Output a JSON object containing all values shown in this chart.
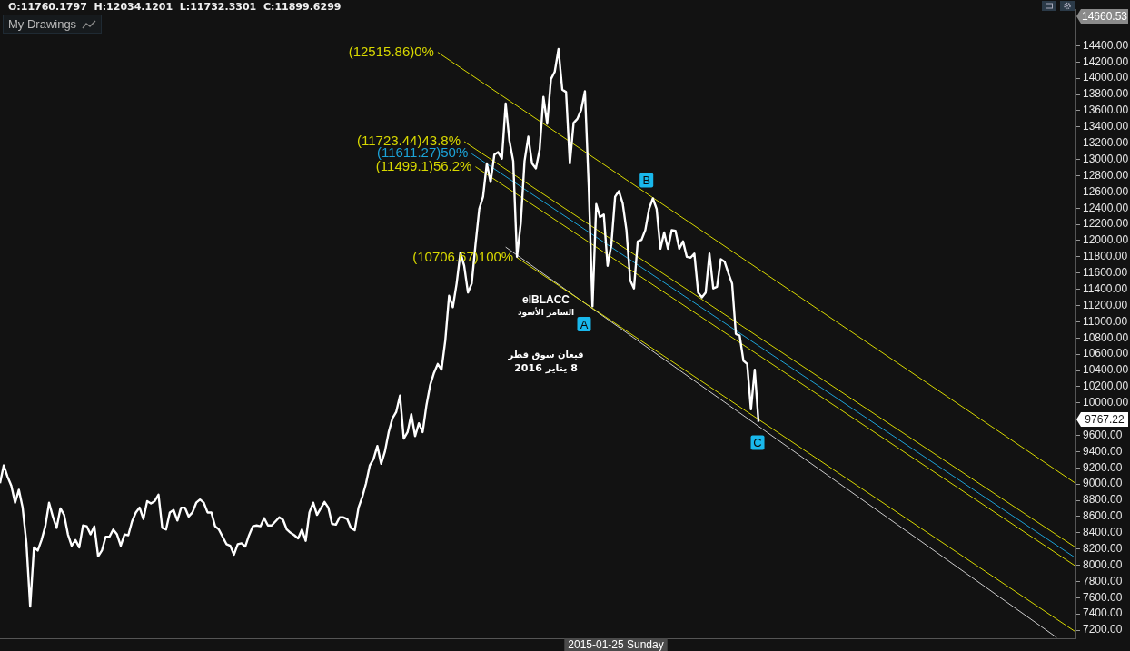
{
  "chart_data": {
    "type": "line",
    "tick_labels": "y",
    "ylim": [
      7100,
      14850
    ],
    "yticks": [
      {
        "value": 7200,
        "label": "7200.00"
      },
      {
        "value": 7400,
        "label": "7400.00"
      },
      {
        "value": 7600,
        "label": "7600.00"
      },
      {
        "value": 7800,
        "label": "7800.00"
      },
      {
        "value": 8000,
        "label": "8000.00"
      },
      {
        "value": 8200,
        "label": "8200.00"
      },
      {
        "value": 8400,
        "label": "8400.00"
      },
      {
        "value": 8600,
        "label": "8600.00"
      },
      {
        "value": 8800,
        "label": "8800.00"
      },
      {
        "value": 9000,
        "label": "9000.00"
      },
      {
        "value": 9200,
        "label": "9200.00"
      },
      {
        "value": 9400,
        "label": "9400.00"
      },
      {
        "value": 9600,
        "label": "9600.00"
      },
      {
        "value": 10000,
        "label": "10000.00"
      },
      {
        "value": 10200,
        "label": "10200.00"
      },
      {
        "value": 10400,
        "label": "10400.00"
      },
      {
        "value": 10600,
        "label": "10600.00"
      },
      {
        "value": 10800,
        "label": "10800.00"
      },
      {
        "value": 11000,
        "label": "11000.00"
      },
      {
        "value": 11200,
        "label": "11200.00"
      },
      {
        "value": 11400,
        "label": "11400.00"
      },
      {
        "value": 11600,
        "label": "11600.00"
      },
      {
        "value": 11800,
        "label": "11800.00"
      },
      {
        "value": 12000,
        "label": "12000.00"
      },
      {
        "value": 12200,
        "label": "12200.00"
      },
      {
        "value": 12400,
        "label": "12400.00"
      },
      {
        "value": 12600,
        "label": "12600.00"
      },
      {
        "value": 12800,
        "label": "12800.00"
      },
      {
        "value": 13000,
        "label": "13000.00"
      },
      {
        "value": 13200,
        "label": "13200.00"
      },
      {
        "value": 13400,
        "label": "13400.00"
      },
      {
        "value": 13600,
        "label": "13600.00"
      },
      {
        "value": 13800,
        "label": "13800.00"
      },
      {
        "value": 14000,
        "label": "14000.00"
      },
      {
        "value": 14200,
        "label": "14200.00"
      },
      {
        "value": 14400,
        "label": "14400.00"
      }
    ],
    "categories": [
      null,
      null,
      null,
      null,
      null,
      null,
      null,
      null,
      null,
      null,
      null,
      null,
      null,
      null,
      null,
      null,
      null,
      null,
      null,
      null,
      null,
      null,
      null,
      null,
      null,
      null,
      null,
      null,
      null,
      null,
      null,
      null,
      null,
      null,
      null,
      null,
      null,
      null,
      null,
      null,
      null,
      null,
      null,
      null,
      null,
      null,
      null,
      null,
      null,
      null,
      null,
      null,
      null,
      null,
      null,
      null,
      null,
      null,
      null,
      null,
      null,
      null,
      null,
      null,
      null,
      null,
      null,
      null,
      null,
      null,
      null,
      null,
      null,
      null,
      null,
      null,
      null,
      null,
      null,
      null,
      null,
      null,
      null,
      null,
      null,
      null,
      null,
      null,
      null,
      null,
      null,
      null,
      null,
      null,
      null,
      null,
      null,
      null,
      null,
      null,
      null,
      null,
      null,
      null,
      null,
      null,
      null,
      null,
      null,
      null,
      null,
      null,
      null,
      null,
      null,
      null,
      null,
      null,
      null,
      null,
      null,
      null,
      null,
      null,
      null,
      null,
      null,
      null,
      null,
      null,
      null,
      null,
      null,
      null,
      null,
      null,
      null,
      null,
      null,
      null,
      null,
      null,
      null,
      null,
      null,
      null,
      null,
      null,
      null,
      null,
      null,
      null,
      null,
      null,
      null,
      null,
      null,
      null,
      null,
      null,
      null,
      null,
      null,
      null,
      null,
      null,
      null,
      null,
      null,
      null,
      null,
      null,
      null,
      null,
      null,
      null,
      null,
      null,
      null,
      null,
      null,
      null,
      null,
      null,
      null,
      null,
      null,
      null,
      null,
      null,
      null,
      null,
      null,
      null,
      null,
      null,
      null,
      null,
      null,
      null,
      null,
      null,
      null,
      null,
      null,
      null,
      null,
      null,
      null,
      null,
      null,
      null,
      null,
      null,
      null,
      null,
      null,
      null,
      null,
      null,
      null,
      null,
      null,
      null,
      null,
      null,
      null,
      null,
      null,
      null,
      null,
      null,
      null,
      null,
      null,
      null,
      null,
      null,
      null,
      null,
      null,
      null,
      null,
      null,
      null,
      null,
      null,
      null,
      null,
      null,
      null,
      null,
      null,
      null,
      null,
      null,
      null,
      null,
      null,
      null,
      null,
      null,
      null,
      null,
      null,
      null,
      null,
      null,
      null,
      null,
      null,
      null,
      null,
      null,
      null,
      null,
      null,
      null,
      null,
      null,
      null,
      null,
      null,
      null,
      null,
      null
    ],
    "series": [
      {
        "color": "#ffffff",
        "values": [
          9010,
          9230,
          9090,
          8980,
          8770,
          8930,
          8710,
          8270,
          7490,
          8220,
          8180,
          8310,
          8480,
          8770,
          8600,
          8460,
          8700,
          8620,
          8380,
          8240,
          8310,
          8220,
          8490,
          8480,
          8380,
          8480,
          8110,
          8180,
          8350,
          8350,
          8440,
          8380,
          8240,
          8380,
          8370,
          8540,
          8650,
          8710,
          8570,
          8790,
          8760,
          8790,
          8870,
          8460,
          8440,
          8650,
          8680,
          8550,
          8710,
          8710,
          8600,
          8650,
          8770,
          8810,
          8770,
          8650,
          8650,
          8480,
          8440,
          8350,
          8260,
          8240,
          8130,
          8260,
          8270,
          8230,
          8370,
          8480,
          8490,
          8480,
          8580,
          8490,
          8490,
          8540,
          8590,
          8560,
          8440,
          8400,
          8370,
          8330,
          8440,
          8300,
          8650,
          8770,
          8620,
          8700,
          8780,
          8710,
          8510,
          8500,
          8590,
          8590,
          8570,
          8460,
          8430,
          8710,
          8840,
          9010,
          9230,
          9310,
          9470,
          9250,
          9400,
          9640,
          9810,
          9890,
          10090,
          9560,
          9640,
          9860,
          9590,
          9750,
          9640,
          9970,
          10220,
          10370,
          10480,
          10410,
          10770,
          11320,
          11180,
          11470,
          11850,
          11690,
          11360,
          11470,
          11950,
          12390,
          12540,
          12950,
          12720,
          13060,
          13090,
          13010,
          13690,
          13230,
          12980,
          11800,
          12210,
          12980,
          13280,
          12950,
          12890,
          13120,
          13770,
          13440,
          13990,
          14080,
          14360,
          13860,
          13830,
          12950,
          13450,
          13500,
          13610,
          13840,
          12680,
          11190,
          12450,
          12290,
          12320,
          11690,
          11950,
          12540,
          12610,
          12460,
          12130,
          11510,
          11410,
          11990,
          12010,
          12130,
          12390,
          12520,
          12390,
          11900,
          12100,
          11900,
          12130,
          12120,
          11900,
          11990,
          11800,
          11790,
          11840,
          11360,
          11300,
          11360,
          11840,
          11410,
          11430,
          11770,
          11740,
          11600,
          11470,
          10850,
          10830,
          10520,
          10480,
          9920,
          10410,
          9767.22,
          null,
          null,
          null,
          null,
          null,
          null,
          null,
          null,
          null,
          null,
          null,
          null,
          null,
          null,
          null,
          null,
          null,
          null,
          null,
          null,
          null,
          null,
          null,
          null,
          null,
          null,
          null,
          null,
          null,
          null,
          null,
          null,
          null,
          null,
          null,
          null,
          null,
          null,
          null,
          null,
          null,
          null,
          null,
          null,
          null,
          null,
          null,
          null,
          null,
          null,
          null,
          null,
          null,
          null,
          null,
          null,
          null,
          null,
          null,
          null,
          null,
          null,
          null,
          null,
          null,
          null,
          null,
          null,
          null,
          null,
          null,
          null,
          null,
          null,
          null,
          null,
          null,
          null,
          null,
          null,
          null,
          null,
          null,
          null
        ]
      },
      {
        "name": "(12515.86)0%",
        "color": "#d8d800",
        "values": [
          null,
          null,
          null,
          null,
          null,
          null,
          null,
          null,
          null,
          null,
          null,
          null,
          null,
          null,
          null,
          null,
          null,
          null,
          null,
          null,
          null,
          null,
          null,
          null,
          null,
          null,
          null,
          null,
          null,
          null,
          null,
          null,
          null,
          null,
          null,
          null,
          null,
          null,
          null,
          null,
          null,
          null,
          null,
          null,
          null,
          null,
          null,
          null,
          null,
          null,
          null,
          null,
          null,
          null,
          null,
          null,
          null,
          null,
          null,
          null,
          null,
          null,
          null,
          null,
          null,
          null,
          null,
          null,
          null,
          null,
          null,
          null,
          null,
          null,
          null,
          null,
          null,
          null,
          null,
          null,
          null,
          null,
          null,
          null,
          null,
          null,
          null,
          null,
          null,
          null,
          null,
          null,
          null,
          null,
          null,
          null,
          null,
          null,
          null,
          null,
          null,
          null,
          null,
          null,
          null,
          null,
          null,
          null,
          null,
          null,
          null,
          null,
          null,
          null,
          null,
          null,
          14320,
          null,
          null,
          null,
          null,
          null,
          null,
          null,
          null,
          null,
          null,
          null,
          null,
          null,
          null,
          null,
          null,
          null,
          null,
          null,
          null,
          null,
          null,
          null,
          null,
          null,
          null,
          null,
          null,
          null,
          null,
          null,
          null,
          null,
          null,
          null,
          null,
          null,
          null,
          null,
          null,
          null,
          null,
          null,
          null,
          null,
          null,
          null,
          null,
          null,
          null,
          null,
          null,
          null,
          null,
          null,
          null,
          null,
          null,
          null,
          null,
          null,
          null,
          null,
          null,
          null,
          null,
          null,
          null,
          null,
          null,
          null,
          null,
          null,
          null,
          null,
          null,
          null,
          null,
          null,
          null,
          null,
          null,
          null,
          null,
          null,
          null,
          null,
          null,
          null,
          null,
          null,
          null,
          null,
          null,
          null,
          null,
          null,
          null,
          null,
          null,
          null,
          null,
          null,
          null,
          null,
          null,
          null,
          null,
          null,
          null,
          null,
          null,
          null,
          null,
          null,
          null,
          null,
          null,
          null,
          null,
          null,
          null,
          null,
          null,
          null,
          null,
          null,
          null,
          null,
          null,
          null,
          null,
          null,
          null,
          null,
          null,
          null,
          null,
          null,
          null,
          null,
          null,
          null,
          null,
          null,
          null,
          null,
          null,
          null,
          null,
          null,
          null,
          null,
          null,
          null,
          null,
          null,
          null,
          null,
          null,
          null,
          null,
          null,
          null,
          null,
          null,
          null,
          null,
          9010
        ]
      },
      {
        "name": "(11723.44)43.8%",
        "color": "#d8d800",
        "values": [
          null,
          null,
          null,
          null,
          null,
          null,
          null,
          null,
          null,
          null,
          null,
          null,
          null,
          null,
          null,
          null,
          null,
          null,
          null,
          null,
          null,
          null,
          null,
          null,
          null,
          null,
          null,
          null,
          null,
          null,
          null,
          null,
          null,
          null,
          null,
          null,
          null,
          null,
          null,
          null,
          null,
          null,
          null,
          null,
          null,
          null,
          null,
          null,
          null,
          null,
          null,
          null,
          null,
          null,
          null,
          null,
          null,
          null,
          null,
          null,
          null,
          null,
          null,
          null,
          null,
          null,
          null,
          null,
          null,
          null,
          null,
          null,
          null,
          null,
          null,
          null,
          null,
          null,
          null,
          null,
          null,
          null,
          null,
          null,
          null,
          null,
          null,
          null,
          null,
          null,
          null,
          null,
          null,
          null,
          null,
          null,
          null,
          null,
          null,
          null,
          null,
          null,
          null,
          null,
          null,
          null,
          null,
          null,
          null,
          null,
          null,
          null,
          null,
          null,
          null,
          null,
          null,
          null,
          null,
          null,
          null,
          null,
          null,
          13220,
          null,
          null,
          null,
          null,
          null,
          null,
          null,
          null,
          null,
          null,
          null,
          null,
          null,
          null,
          null,
          null,
          null,
          null,
          null,
          null,
          null,
          null,
          null,
          null,
          null,
          null,
          null,
          null,
          null,
          null,
          null,
          null,
          null,
          null,
          null,
          null,
          null,
          null,
          null,
          null,
          null,
          null,
          null,
          null,
          null,
          null,
          null,
          null,
          null,
          null,
          null,
          null,
          null,
          null,
          null,
          null,
          null,
          null,
          null,
          null,
          null,
          null,
          null,
          null,
          null,
          null,
          null,
          null,
          null,
          null,
          null,
          null,
          null,
          null,
          null,
          null,
          null,
          null,
          null,
          null,
          null,
          null,
          null,
          null,
          null,
          null,
          null,
          null,
          null,
          null,
          null,
          null,
          null,
          null,
          null,
          null,
          null,
          null,
          null,
          null,
          null,
          null,
          null,
          null,
          null,
          null,
          null,
          null,
          null,
          null,
          null,
          null,
          null,
          null,
          null,
          null,
          null,
          null,
          null,
          null,
          null,
          null,
          null,
          null,
          null,
          null,
          null,
          null,
          null,
          null,
          null,
          null,
          null,
          null,
          null,
          null,
          null,
          null,
          null,
          null,
          null,
          null,
          null,
          null,
          null,
          null,
          null,
          null,
          null,
          null,
          null,
          null,
          null,
          null,
          null,
          null,
          null,
          null,
          null,
          null,
          null,
          8220
        ]
      },
      {
        "name": "(11611.27)50%",
        "color": "#1ca3d8",
        "values": [
          null,
          null,
          null,
          null,
          null,
          null,
          null,
          null,
          null,
          null,
          null,
          null,
          null,
          null,
          null,
          null,
          null,
          null,
          null,
          null,
          null,
          null,
          null,
          null,
          null,
          null,
          null,
          null,
          null,
          null,
          null,
          null,
          null,
          null,
          null,
          null,
          null,
          null,
          null,
          null,
          null,
          null,
          null,
          null,
          null,
          null,
          null,
          null,
          null,
          null,
          null,
          null,
          null,
          null,
          null,
          null,
          null,
          null,
          null,
          null,
          null,
          null,
          null,
          null,
          null,
          null,
          null,
          null,
          null,
          null,
          null,
          null,
          null,
          null,
          null,
          null,
          null,
          null,
          null,
          null,
          null,
          null,
          null,
          null,
          null,
          null,
          null,
          null,
          null,
          null,
          null,
          null,
          null,
          null,
          null,
          null,
          null,
          null,
          null,
          null,
          null,
          null,
          null,
          null,
          null,
          null,
          null,
          null,
          null,
          null,
          null,
          null,
          null,
          null,
          null,
          null,
          null,
          null,
          null,
          null,
          null,
          null,
          null,
          null,
          null,
          13070,
          null,
          null,
          null,
          null,
          null,
          null,
          null,
          null,
          null,
          null,
          null,
          null,
          null,
          null,
          null,
          null,
          null,
          null,
          null,
          null,
          null,
          null,
          null,
          null,
          null,
          null,
          null,
          null,
          null,
          null,
          null,
          null,
          null,
          null,
          null,
          null,
          null,
          null,
          null,
          null,
          null,
          null,
          null,
          null,
          null,
          null,
          null,
          null,
          null,
          null,
          null,
          null,
          null,
          null,
          null,
          null,
          null,
          null,
          null,
          null,
          null,
          null,
          null,
          null,
          null,
          null,
          null,
          null,
          null,
          null,
          null,
          null,
          null,
          null,
          null,
          null,
          null,
          null,
          null,
          null,
          null,
          null,
          null,
          null,
          null,
          null,
          null,
          null,
          null,
          null,
          null,
          null,
          null,
          null,
          null,
          null,
          null,
          null,
          null,
          null,
          null,
          null,
          null,
          null,
          null,
          null,
          null,
          null,
          null,
          null,
          null,
          null,
          null,
          null,
          null,
          null,
          null,
          null,
          null,
          null,
          null,
          null,
          null,
          null,
          null,
          null,
          null,
          null,
          null,
          null,
          null,
          null,
          null,
          null,
          null,
          null,
          null,
          null,
          null,
          null,
          null,
          null,
          null,
          null,
          null,
          null,
          null,
          null,
          null,
          null,
          null,
          null,
          null,
          null,
          null,
          null,
          null,
          null,
          null,
          8090
        ]
      },
      {
        "name": "(11499.1)56.2%",
        "color": "#d8d800",
        "values": [
          null,
          null,
          null,
          null,
          null,
          null,
          null,
          null,
          null,
          null,
          null,
          null,
          null,
          null,
          null,
          null,
          null,
          null,
          null,
          null,
          null,
          null,
          null,
          null,
          null,
          null,
          null,
          null,
          null,
          null,
          null,
          null,
          null,
          null,
          null,
          null,
          null,
          null,
          null,
          null,
          null,
          null,
          null,
          null,
          null,
          null,
          null,
          null,
          null,
          null,
          null,
          null,
          null,
          null,
          null,
          null,
          null,
          null,
          null,
          null,
          null,
          null,
          null,
          null,
          null,
          null,
          null,
          null,
          null,
          null,
          null,
          null,
          null,
          null,
          null,
          null,
          null,
          null,
          null,
          null,
          null,
          null,
          null,
          null,
          null,
          null,
          null,
          null,
          null,
          null,
          null,
          null,
          null,
          null,
          null,
          null,
          null,
          null,
          null,
          null,
          null,
          null,
          null,
          null,
          null,
          null,
          null,
          null,
          null,
          null,
          null,
          null,
          null,
          null,
          null,
          null,
          null,
          null,
          null,
          null,
          null,
          null,
          null,
          null,
          null,
          null,
          12910,
          null,
          null,
          null,
          null,
          null,
          null,
          null,
          null,
          null,
          null,
          null,
          null,
          null,
          null,
          null,
          null,
          null,
          null,
          null,
          null,
          null,
          null,
          null,
          null,
          null,
          null,
          null,
          null,
          null,
          null,
          null,
          null,
          null,
          null,
          null,
          null,
          null,
          null,
          null,
          null,
          null,
          null,
          null,
          null,
          null,
          null,
          null,
          null,
          null,
          null,
          null,
          null,
          null,
          null,
          null,
          null,
          null,
          null,
          null,
          null,
          null,
          null,
          null,
          null,
          null,
          null,
          null,
          null,
          null,
          null,
          null,
          null,
          null,
          null,
          null,
          null,
          null,
          null,
          null,
          null,
          null,
          null,
          null,
          null,
          null,
          null,
          null,
          null,
          null,
          null,
          null,
          null,
          null,
          null,
          null,
          null,
          null,
          null,
          null,
          null,
          null,
          null,
          null,
          null,
          null,
          null,
          null,
          null,
          null,
          null,
          null,
          null,
          null,
          null,
          null,
          null,
          null,
          null,
          null,
          null,
          null,
          null,
          null,
          null,
          null,
          null,
          null,
          null,
          null,
          null,
          null,
          null,
          null,
          null,
          null,
          null,
          null,
          null,
          null,
          null,
          null,
          null,
          null,
          null,
          null,
          null,
          null,
          null,
          null,
          null,
          null,
          null,
          null,
          null,
          null,
          null,
          null,
          null,
          7990
        ]
      },
      {
        "name": "(10706.67)100%",
        "color": "#d8d800",
        "values": [
          null,
          null,
          null,
          null,
          null,
          null,
          null,
          null,
          null,
          null,
          null,
          null,
          null,
          null,
          null,
          null,
          null,
          null,
          null,
          null,
          null,
          null,
          null,
          null,
          null,
          null,
          null,
          null,
          null,
          null,
          null,
          null,
          null,
          null,
          null,
          null,
          null,
          null,
          null,
          null,
          null,
          null,
          null,
          null,
          null,
          null,
          null,
          null,
          null,
          null,
          null,
          null,
          null,
          null,
          null,
          null,
          null,
          null,
          null,
          null,
          null,
          null,
          null,
          null,
          null,
          null,
          null,
          null,
          null,
          null,
          null,
          null,
          null,
          null,
          null,
          null,
          null,
          null,
          null,
          null,
          null,
          null,
          null,
          null,
          null,
          null,
          null,
          null,
          null,
          null,
          null,
          null,
          null,
          null,
          null,
          null,
          null,
          null,
          null,
          null,
          null,
          null,
          null,
          null,
          null,
          null,
          null,
          null,
          null,
          null,
          null,
          null,
          null,
          null,
          null,
          null,
          null,
          null,
          null,
          null,
          null,
          null,
          null,
          null,
          null,
          null,
          null,
          null,
          null,
          null,
          null,
          null,
          null,
          null,
          null,
          null,
          null,
          11790,
          null,
          null,
          null,
          null,
          null,
          null,
          null,
          null,
          null,
          null,
          null,
          null,
          null,
          null,
          null,
          null,
          null,
          null,
          null,
          null,
          null,
          null,
          null,
          null,
          null,
          null,
          null,
          null,
          null,
          null,
          null,
          null,
          null,
          null,
          null,
          null,
          null,
          null,
          null,
          null,
          null,
          null,
          null,
          null,
          null,
          null,
          null,
          null,
          null,
          null,
          null,
          null,
          null,
          null,
          null,
          null,
          null,
          null,
          null,
          null,
          null,
          null,
          null,
          null,
          null,
          null,
          null,
          null,
          null,
          null,
          null,
          null,
          null,
          null,
          null,
          null,
          null,
          null,
          null,
          null,
          null,
          null,
          null,
          null,
          null,
          null,
          null,
          null,
          null,
          null,
          null,
          null,
          null,
          null,
          null,
          null,
          null,
          null,
          null,
          null,
          null,
          null,
          null,
          null,
          null,
          null,
          null,
          null,
          null,
          null,
          null,
          null,
          null,
          null,
          null,
          null,
          null,
          null,
          null,
          null,
          null,
          null,
          null,
          null,
          null,
          null,
          null,
          null,
          null,
          null,
          null,
          null,
          null,
          null,
          null,
          null,
          null,
          null,
          null,
          null,
          null,
          null,
          null,
          null,
          null,
          null,
          null,
          7180
        ]
      },
      {
        "color": "#cccccc",
        "values": [
          null,
          null,
          null,
          null,
          null,
          null,
          null,
          null,
          null,
          null,
          null,
          null,
          null,
          null,
          null,
          null,
          null,
          null,
          null,
          null,
          null,
          null,
          null,
          null,
          null,
          null,
          null,
          null,
          null,
          null,
          null,
          null,
          null,
          null,
          null,
          null,
          null,
          null,
          null,
          null,
          null,
          null,
          null,
          null,
          null,
          null,
          null,
          null,
          null,
          null,
          null,
          null,
          null,
          null,
          null,
          null,
          null,
          null,
          null,
          null,
          null,
          null,
          null,
          null,
          null,
          null,
          null,
          null,
          null,
          null,
          null,
          null,
          null,
          null,
          null,
          null,
          null,
          null,
          null,
          null,
          null,
          null,
          null,
          null,
          null,
          null,
          null,
          null,
          null,
          null,
          null,
          null,
          null,
          null,
          null,
          null,
          null,
          null,
          null,
          null,
          null,
          null,
          null,
          null,
          null,
          null,
          null,
          null,
          null,
          null,
          null,
          null,
          null,
          null,
          null,
          null,
          null,
          null,
          null,
          null,
          null,
          null,
          null,
          null,
          null,
          null,
          null,
          null,
          null,
          null,
          null,
          null,
          null,
          null,
          11920,
          null,
          null,
          null,
          null,
          null,
          null,
          null,
          null,
          null,
          null,
          null,
          null,
          null,
          null,
          null,
          null,
          null,
          null,
          null,
          null,
          null,
          null,
          null,
          null,
          null,
          null,
          null,
          null,
          null,
          null,
          null,
          null,
          null,
          null,
          null,
          null,
          null,
          null,
          null,
          null,
          null,
          null,
          null,
          null,
          null,
          null,
          null,
          null,
          null,
          null,
          null,
          null,
          null,
          null,
          null,
          null,
          null,
          null,
          null,
          null,
          null,
          null,
          null,
          null,
          null,
          null,
          null,
          null,
          null,
          null,
          null,
          null,
          null,
          null,
          null,
          null,
          null,
          null,
          null,
          null,
          null,
          null,
          null,
          null,
          null,
          null,
          null,
          null,
          null,
          null,
          null,
          null,
          null,
          null,
          null,
          null,
          null,
          null,
          null,
          null,
          null,
          null,
          null,
          null,
          null,
          null,
          null,
          null,
          null,
          null,
          null,
          null,
          null,
          null,
          null,
          null,
          null,
          null,
          null,
          null,
          null,
          null,
          null,
          null,
          null,
          null,
          null,
          null,
          null,
          null,
          null,
          null,
          null,
          null,
          null,
          null,
          null,
          null,
          null,
          null,
          null,
          null,
          null,
          null,
          null,
          7110,
          null,
          null,
          null,
          null,
          null
        ]
      }
    ],
    "annotations": [
      "O:11760.1797  H:12034.1201  L:11732.3301  C:11899.6299",
      "My Drawings",
      "elBLACC",
      "السامر الأسود",
      "قيعان سوق قطر",
      "8 يناير 2016",
      "A",
      {
        "text": "B",
        "y": 12520
      },
      {
        "text": "C",
        "y": 9767.22
      },
      "14660.53",
      "9767.22",
      "2015-01-25 Sunday"
    ]
  }
}
